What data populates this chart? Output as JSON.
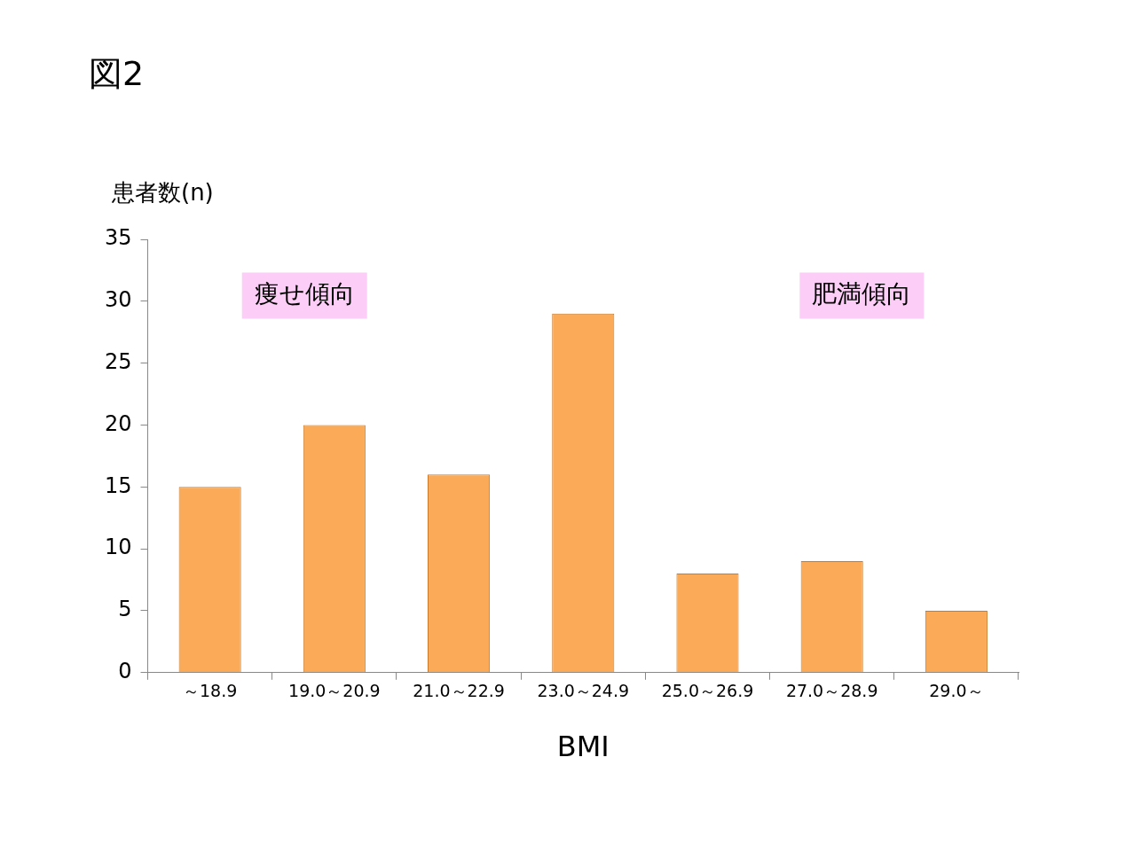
{
  "chart_data": {
    "type": "bar",
    "title": "図2",
    "ylabel": "患者数(n)",
    "xlabel": "BMI",
    "categories": [
      "～18.9",
      "19.0～20.9",
      "21.0～22.9",
      "23.0～24.9",
      "25.0～26.9",
      "27.0～28.9",
      "29.0～"
    ],
    "values": [
      15,
      20,
      16,
      29,
      8,
      9,
      5
    ],
    "color": "#fbab57",
    "ylim": [
      0,
      35
    ],
    "yticks": [
      0,
      5,
      10,
      15,
      20,
      25,
      30,
      35
    ],
    "grid": false,
    "annotations": [
      "痩せ傾向",
      "肥満傾向"
    ]
  }
}
